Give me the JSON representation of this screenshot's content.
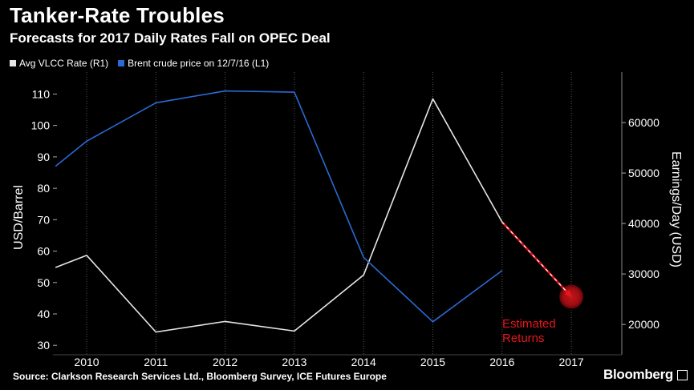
{
  "title": "Tanker-Rate Troubles",
  "subtitle": "Forecasts for 2017 Daily Rates Fall on OPEC Deal",
  "source": "Source: Clarkson Research Services Ltd., Bloomberg Survey, ICE Futures Europe",
  "brand": "Bloomberg",
  "colors": {
    "vlcc": "#e6e6e6",
    "brent": "#2a6ad4",
    "projection": "#e8161b",
    "background": "#000000"
  },
  "chart_data": {
    "type": "line",
    "categories": [
      "2010",
      "2011",
      "2012",
      "2013",
      "2014",
      "2015",
      "2016",
      "2017"
    ],
    "y_left": {
      "label": "USD/Barrel",
      "ticks": [
        30,
        40,
        50,
        60,
        70,
        80,
        90,
        100,
        110
      ],
      "ylim": [
        27,
        117
      ]
    },
    "y_right": {
      "label": "Earnings/Day (USD)",
      "ticks": [
        20000,
        30000,
        40000,
        50000,
        60000
      ],
      "ylim": [
        14000,
        70000
      ]
    },
    "series": [
      {
        "name": "Avg VLCC Rate (R1)",
        "axis": "right",
        "color": "#e6e6e6",
        "points": [
          [
            2009.55,
            31300
          ],
          [
            2010,
            33700
          ],
          [
            2011,
            18500
          ],
          [
            2012,
            20600
          ],
          [
            2013,
            18700
          ],
          [
            2014,
            29800
          ],
          [
            2015,
            64700
          ],
          [
            2016,
            40300
          ]
        ]
      },
      {
        "name": "Brent crude price on 12/7/16 (L1)",
        "axis": "left",
        "color": "#2a6ad4",
        "points": [
          [
            2009.55,
            87
          ],
          [
            2010,
            95
          ],
          [
            2011,
            107.2
          ],
          [
            2012,
            111
          ],
          [
            2013,
            110.6
          ],
          [
            2014,
            58
          ],
          [
            2015,
            37.5
          ],
          [
            2016,
            53.8
          ]
        ]
      }
    ],
    "projection": {
      "from": [
        2016,
        40300
      ],
      "to": [
        2017,
        25500
      ],
      "label": [
        "Estimated",
        "Returns"
      ]
    },
    "grid": "vertical dotted",
    "legend": "top-left"
  }
}
